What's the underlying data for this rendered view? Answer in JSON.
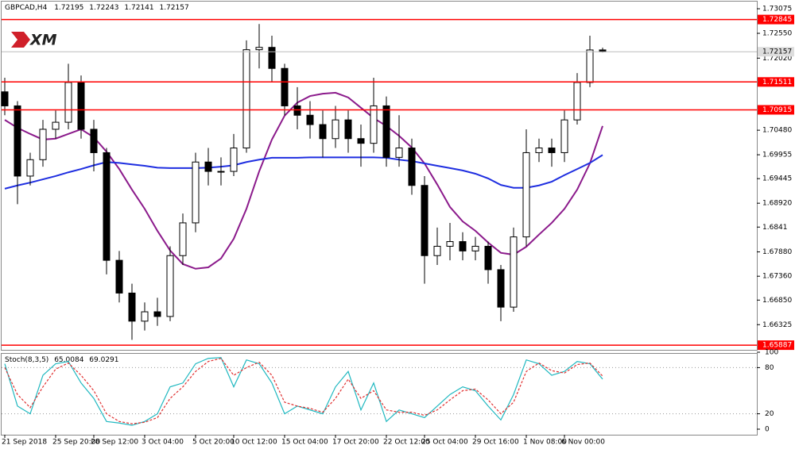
{
  "brand": "XM",
  "chart_data": [
    {
      "type": "candlestick",
      "title": "GBPCAD,H4",
      "categories": [
        "21 Sep 2018",
        null,
        null,
        null,
        "25 Sep 20:00",
        null,
        null,
        "28 Sep 12:00",
        null,
        null,
        null,
        "3 Oct 04:00",
        null,
        null,
        null,
        "5 Oct 20:00",
        null,
        null,
        "10 Oct 12:00",
        null,
        null,
        null,
        "15 Oct 04:00",
        null,
        null,
        null,
        "17 Oct 20:00",
        null,
        null,
        null,
        "22 Oct 12:00",
        null,
        null,
        "25 Oct 04:00",
        null,
        null,
        null,
        "29 Oct 16:00",
        null,
        null,
        null,
        "1 Nov 08:00",
        null,
        null,
        "6 Nov 00:00",
        null,
        null,
        null
      ],
      "open": [
        1.713,
        1.71,
        1.695,
        1.6985,
        1.705,
        1.7065,
        1.715,
        1.705,
        1.7,
        1.677,
        1.67,
        1.664,
        1.666,
        1.665,
        1.678,
        1.685,
        1.698,
        1.696,
        1.696,
        1.701,
        1.722,
        1.7225,
        1.718,
        1.71,
        1.708,
        1.706,
        1.703,
        1.707,
        1.703,
        1.702,
        1.71,
        1.699,
        1.701,
        1.693,
        1.678,
        1.68,
        1.681,
        1.679,
        1.68,
        1.675,
        1.667,
        1.682,
        1.7,
        1.701,
        1.7,
        1.707,
        1.715,
        1.72195
      ],
      "high": [
        1.716,
        1.711,
        1.7,
        1.707,
        1.709,
        1.719,
        1.7165,
        1.707,
        1.701,
        1.679,
        1.672,
        1.668,
        1.669,
        1.68,
        1.687,
        1.7,
        1.701,
        1.699,
        1.704,
        1.724,
        1.7275,
        1.725,
        1.719,
        1.714,
        1.711,
        1.709,
        1.71,
        1.709,
        1.706,
        1.716,
        1.712,
        1.708,
        1.703,
        1.695,
        1.684,
        1.685,
        1.683,
        1.682,
        1.681,
        1.676,
        1.684,
        1.705,
        1.703,
        1.703,
        1.709,
        1.717,
        1.725,
        1.72243
      ],
      "low": [
        1.708,
        1.689,
        1.693,
        1.697,
        1.703,
        1.705,
        1.703,
        1.696,
        1.674,
        1.668,
        1.66,
        1.662,
        1.663,
        1.664,
        1.676,
        1.683,
        1.693,
        1.693,
        1.695,
        1.7,
        1.718,
        1.715,
        1.708,
        1.705,
        1.703,
        1.699,
        1.701,
        1.7,
        1.697,
        1.7,
        1.697,
        1.697,
        1.691,
        1.672,
        1.676,
        1.677,
        1.677,
        1.677,
        1.672,
        1.664,
        1.666,
        1.68,
        1.698,
        1.697,
        1.698,
        1.706,
        1.714,
        1.72141
      ],
      "close": [
        1.71,
        1.695,
        1.6985,
        1.705,
        1.7065,
        1.715,
        1.705,
        1.7,
        1.677,
        1.67,
        1.664,
        1.666,
        1.665,
        1.678,
        1.685,
        1.698,
        1.696,
        1.696,
        1.701,
        1.722,
        1.7225,
        1.718,
        1.71,
        1.708,
        1.706,
        1.703,
        1.707,
        1.703,
        1.702,
        1.71,
        1.699,
        1.701,
        1.693,
        1.678,
        1.68,
        1.681,
        1.679,
        1.68,
        1.675,
        1.667,
        1.682,
        1.7,
        1.701,
        1.7,
        1.707,
        1.715,
        1.72195,
        1.72157
      ],
      "overlays": [
        {
          "color": "#8b1a8b",
          "values": [
            1.707,
            1.7053,
            1.704,
            1.7028,
            1.703,
            1.704,
            1.705,
            1.7033,
            1.7002,
            1.6965,
            1.6921,
            1.688,
            1.6833,
            1.6791,
            1.6762,
            1.6752,
            1.6755,
            1.6774,
            1.6816,
            1.688,
            1.696,
            1.7028,
            1.7079,
            1.7107,
            1.7121,
            1.7126,
            1.7128,
            1.7118,
            1.7096,
            1.7074,
            1.7057,
            1.7036,
            1.7011,
            1.6977,
            1.6932,
            1.6884,
            1.6853,
            1.6833,
            1.6808,
            1.6786,
            1.6782,
            1.6799,
            1.6825,
            1.685,
            1.688,
            1.6921,
            1.6977,
            1.7057
          ]
        },
        {
          "color": "#1e2ee0",
          "values": [
            1.6923,
            1.693,
            1.6936,
            1.6943,
            1.695,
            1.6958,
            1.6965,
            1.6973,
            1.698,
            1.6978,
            1.6975,
            1.6972,
            1.6968,
            1.6967,
            1.6967,
            1.6967,
            1.6968,
            1.697,
            1.6973,
            1.698,
            1.6985,
            1.6989,
            1.6989,
            1.6989,
            1.699,
            1.699,
            1.699,
            1.699,
            1.699,
            1.699,
            1.6989,
            1.6985,
            1.6982,
            1.6977,
            1.6972,
            1.6967,
            1.6962,
            1.6955,
            1.6945,
            1.6931,
            1.6925,
            1.6925,
            1.693,
            1.6938,
            1.6952,
            1.6965,
            1.6978,
            1.6995
          ]
        }
      ],
      "levels": [
        1.72845,
        1.71511,
        1.70915,
        1.65887
      ],
      "level_color": "#ff0000",
      "ylim": [
        1.65787,
        1.73245
      ],
      "yticks": [
        1.73075,
        {
          "value": 1.7255,
          "label": "1.72550"
        },
        {
          "value": 1.7202,
          "label": "1.72020"
        },
        {
          "value": 1.7048,
          "label": "1.70480"
        },
        1.69955,
        1.69445,
        {
          "value": 1.6892,
          "label": "1.68920"
        },
        1.6841,
        {
          "value": 1.6788,
          "label": "1.67880"
        },
        {
          "value": 1.6736,
          "label": "1.67360"
        },
        {
          "value": 1.6685,
          "label": "1.66850"
        },
        1.66325
      ]
    },
    {
      "type": "line",
      "title": "Stoch(8,3,5)",
      "series": [
        {
          "color": "#20b8c0",
          "style": "solid",
          "values": [
            85,
            30,
            20,
            70,
            85,
            88,
            60,
            40,
            10,
            8,
            5,
            10,
            20,
            55,
            60,
            85,
            92,
            93,
            55,
            90,
            85,
            60,
            20,
            30,
            25,
            20,
            55,
            75,
            25,
            60,
            10,
            25,
            20,
            15,
            30,
            45,
            55,
            50,
            30,
            12,
            45,
            90,
            85,
            70,
            75,
            88,
            85,
            65.0084
          ]
        },
        {
          "color": "#e03030",
          "style": "dashed",
          "values": [
            80,
            45,
            28,
            55,
            78,
            86,
            70,
            50,
            20,
            10,
            7,
            9,
            15,
            40,
            55,
            75,
            88,
            92,
            70,
            80,
            87,
            70,
            35,
            30,
            27,
            22,
            40,
            65,
            40,
            50,
            25,
            22,
            22,
            18,
            25,
            38,
            50,
            52,
            38,
            20,
            35,
            75,
            86,
            76,
            73,
            84,
            86,
            69.0291
          ]
        }
      ],
      "levels": [
        80,
        20
      ],
      "ylim": [
        0,
        100
      ],
      "yticks": [
        0,
        20,
        80,
        100
      ]
    }
  ]
}
